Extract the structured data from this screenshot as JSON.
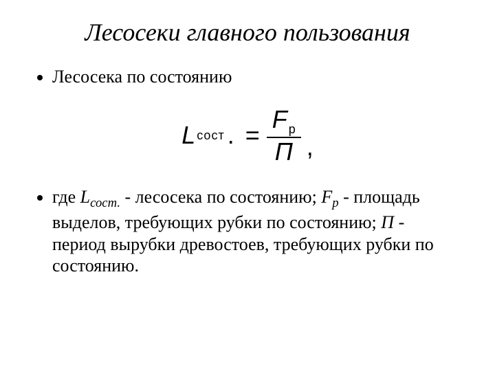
{
  "title": "Лесосеки главного пользования",
  "bullet1": "Лесосека по состоянию",
  "formula": {
    "lhs_var": "L",
    "lhs_sub": "сост",
    "lhs_dot": ".",
    "eq": "=",
    "num_var": "F",
    "num_sub": "р",
    "den": "П",
    "comma": ","
  },
  "bullet2": {
    "t1": "где ",
    "v1": "L",
    "s1": "сост.",
    "t2": " - лесосека по состоянию; ",
    "v2": "F",
    "s2": "р",
    "t3": " - площадь выделов, требующих рубки по состоянию; ",
    "v3": "П",
    "t4": " - период вырубки древостоев, требующих рубки по состоянию."
  },
  "colors": {
    "background": "#ffffff",
    "text": "#000000"
  },
  "typography": {
    "body_font": "Times New Roman",
    "formula_font": "Arial",
    "title_size_pt": 36,
    "body_size_pt": 26,
    "formula_size_pt": 36
  }
}
